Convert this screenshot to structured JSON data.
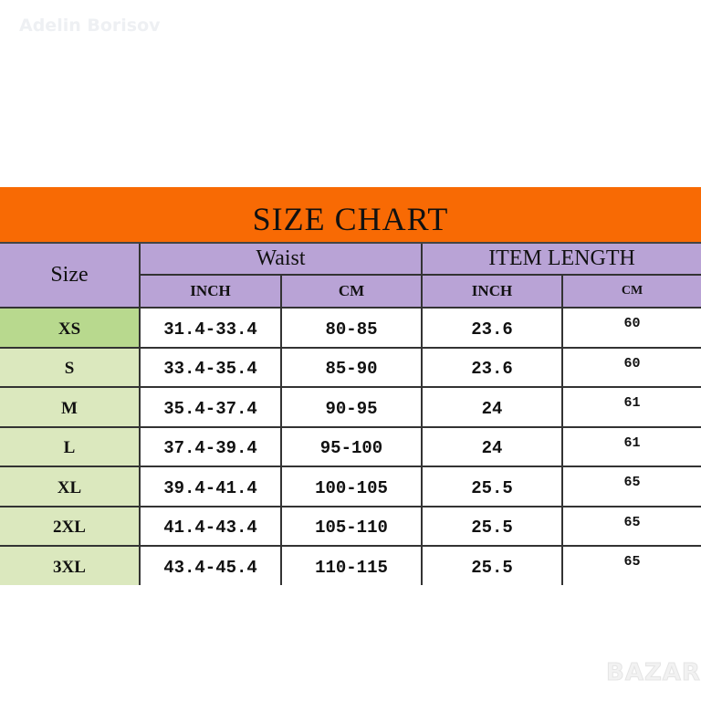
{
  "watermark": "Adelin Borisov",
  "logo": "BAZAR",
  "title": "SIZE CHART",
  "headers": {
    "size": "Size",
    "waist": "Waist",
    "item_length": "ITEM LENGTH",
    "waist_inch": "INCH",
    "waist_cm": "CM",
    "length_inch": "INCH",
    "length_cm": "CM"
  },
  "rows": [
    {
      "size": "XS",
      "waist_inch": "31.4-33.4",
      "waist_cm": "80-85",
      "length_inch": "23.6",
      "length_cm": "60"
    },
    {
      "size": "S",
      "waist_inch": "33.4-35.4",
      "waist_cm": "85-90",
      "length_inch": "23.6",
      "length_cm": "60"
    },
    {
      "size": "M",
      "waist_inch": "35.4-37.4",
      "waist_cm": "90-95",
      "length_inch": "24",
      "length_cm": "61"
    },
    {
      "size": "L",
      "waist_inch": "37.4-39.4",
      "waist_cm": "95-100",
      "length_inch": "24",
      "length_cm": "61"
    },
    {
      "size": "XL",
      "waist_inch": "39.4-41.4",
      "waist_cm": "100-105",
      "length_inch": "25.5",
      "length_cm": "65"
    },
    {
      "size": "2XL",
      "waist_inch": "41.4-43.4",
      "waist_cm": "105-110",
      "length_inch": "25.5",
      "length_cm": "65"
    },
    {
      "size": "3XL",
      "waist_inch": "43.4-45.4",
      "waist_cm": "110-115",
      "length_inch": "25.5",
      "length_cm": "65"
    }
  ],
  "colors": {
    "banner": "#f86a04",
    "header": "#b9a3d6",
    "size_column": "#dbe8be",
    "size_first": "#b8d98e"
  }
}
